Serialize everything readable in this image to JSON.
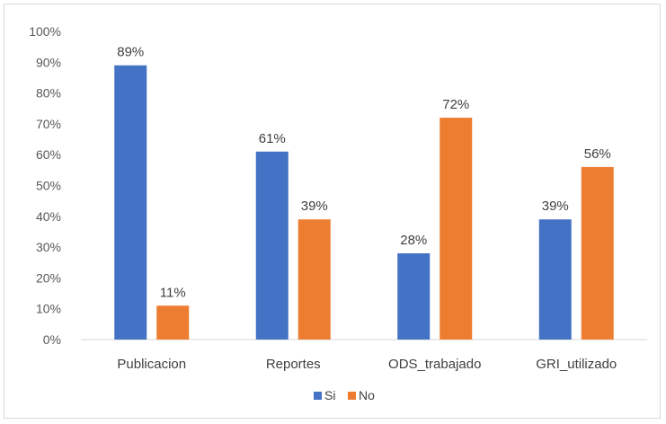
{
  "chart_data": {
    "type": "bar",
    "categories": [
      "Publicacion",
      "Reportes",
      "ODS_trabajado",
      "GRI_utilizado"
    ],
    "series": [
      {
        "name": "Si",
        "values": [
          89,
          61,
          28,
          39
        ],
        "data_labels": [
          "89%",
          "61%",
          "28%",
          "39%"
        ],
        "color": "#4472C4"
      },
      {
        "name": "No",
        "values": [
          11,
          39,
          72,
          56
        ],
        "data_labels": [
          "11%",
          "39%",
          "72%",
          "56%"
        ],
        "color": "#ED7D31"
      }
    ],
    "ylim": [
      0,
      100
    ],
    "yticks": [
      "0%",
      "10%",
      "20%",
      "30%",
      "40%",
      "50%",
      "60%",
      "70%",
      "80%",
      "90%",
      "100%"
    ],
    "grid": false,
    "legend_position": "bottom"
  }
}
